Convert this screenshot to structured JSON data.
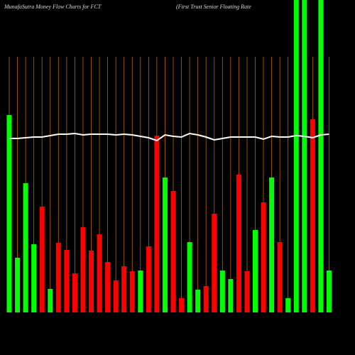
{
  "chart_data": {
    "type": "bar",
    "title": "MunafaSutra  Money Flow  Charts for FCT",
    "subtitle": "(First Trust Senior Floating Rate",
    "categories": [
      null,
      null,
      null,
      null,
      null,
      null,
      null,
      null,
      null,
      null,
      null,
      null,
      null,
      null,
      null,
      null,
      null,
      null,
      null,
      null,
      null,
      null,
      null,
      null,
      null,
      null,
      null,
      null,
      null,
      null,
      null,
      null,
      null,
      null,
      null,
      null,
      null,
      null,
      null,
      null
    ],
    "values": [
      278,
      77,
      182,
      96,
      149,
      33,
      98,
      88,
      55,
      120,
      87,
      110,
      71,
      45,
      65,
      58,
      59,
      93,
      249,
      190,
      171,
      20,
      99,
      32,
      37,
      139,
      59,
      47,
      194,
      58,
      116,
      155,
      190,
      99,
      20,
      440,
      440,
      272,
      440,
      59
    ],
    "colors": [
      "#00ff00",
      "#00ff00",
      "#00ff00",
      "#00ff00",
      "#ff0000",
      "#00ff00",
      "#ff0000",
      "#ff0000",
      "#ff0000",
      "#ff0000",
      "#ff0000",
      "#ff0000",
      "#ff0000",
      "#ff0000",
      "#ff0000",
      "#ff0000",
      "#00ff00",
      "#ff0000",
      "#ff0000",
      "#00ff00",
      "#ff0000",
      "#ff0000",
      "#00ff00",
      "#00ff00",
      "#ff0000",
      "#ff0000",
      "#00ff00",
      "#00ff00",
      "#ff0000",
      "#ff0000",
      "#00ff00",
      "#ff0000",
      "#00ff00",
      "#ff0000",
      "#00ff00",
      "#00ff00",
      "#00ff00",
      "#ff0000",
      "#00ff00",
      "#00ff00"
    ],
    "line_values": [
      245,
      245,
      246,
      247,
      247,
      249,
      251,
      251,
      252,
      250,
      251,
      251,
      251,
      250,
      251,
      250,
      248,
      246,
      242,
      250,
      248,
      247,
      252,
      250,
      247,
      243,
      245,
      247,
      247,
      247,
      247,
      244,
      248,
      247,
      247,
      249,
      248,
      246,
      250,
      251
    ],
    "line_color": "#ffffff",
    "grid_color": "#b8650a",
    "ylim": [
      0,
      440
    ]
  }
}
